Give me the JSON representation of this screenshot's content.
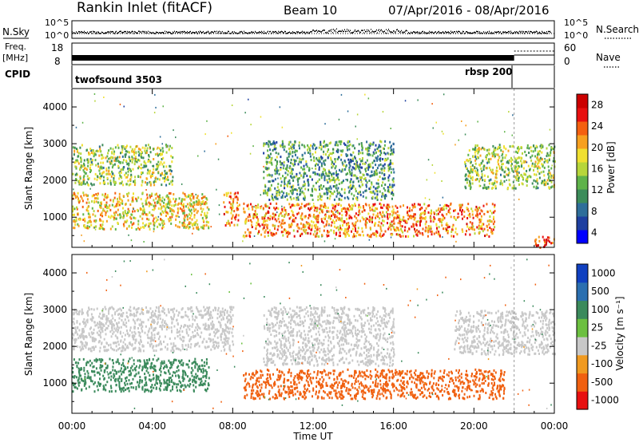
{
  "header": {
    "station": "Rankin Inlet (fitACF)",
    "beam": "Beam 10",
    "dates": "07/Apr/2016 - 08/Apr/2016"
  },
  "strips": {
    "nsky_label": "N.Sky",
    "nsearch_label": "N.Search",
    "noise_ticks_left": [
      "10^5",
      "10^0"
    ],
    "noise_ticks_right": [
      "10^5",
      "10^0"
    ],
    "freq_label_top": "Freq.",
    "freq_label_units": "[MHz]",
    "freq_ticks": [
      "18",
      "8"
    ],
    "nave_label": "Nave",
    "nave_ticks": [
      "60",
      "0"
    ],
    "cpid_label": "CPID",
    "cpid_segments": [
      {
        "name": "twofsound 3503",
        "start_hour": 0,
        "end_hour": 22
      },
      {
        "name": "rbsp 200",
        "start_hour": 22,
        "end_hour": 24
      }
    ]
  },
  "chart_data": [
    {
      "type": "heatmap",
      "panel": "power",
      "ylabel": "Slant Range [km]",
      "ylim": [
        180,
        4500
      ],
      "yticks": [
        "1000",
        "2000",
        "3000",
        "4000"
      ],
      "x_ticks": [
        "00:00",
        "04:00",
        "08:00",
        "12:00",
        "16:00",
        "20:00",
        "00:00"
      ],
      "xlim_hours": [
        0,
        24
      ],
      "colorbar": {
        "label": "Power [dB]",
        "ticks": [
          "4",
          "8",
          "12",
          "16",
          "20",
          "24",
          "28"
        ],
        "colors": [
          "#0000ff",
          "#1e3fa0",
          "#2e6e9a",
          "#3c8c5a",
          "#5fb34a",
          "#b7d63a",
          "#f0e030",
          "#f7a020",
          "#f46010",
          "#e81010",
          "#cc0000"
        ]
      },
      "echo_bands": [
        {
          "t": [
            0.0,
            6.8
          ],
          "range_km": [
            700,
            1700
          ],
          "level_db": 18
        },
        {
          "t": [
            0.0,
            5.0
          ],
          "range_km": [
            1900,
            3000
          ],
          "level_db": 14
        },
        {
          "t": [
            7.5,
            8.3
          ],
          "range_km": [
            800,
            1700
          ],
          "level_db": 22
        },
        {
          "t": [
            8.5,
            21.0
          ],
          "range_km": [
            500,
            1400
          ],
          "level_db": 22
        },
        {
          "t": [
            9.5,
            16.0
          ],
          "range_km": [
            1500,
            3100
          ],
          "level_db": 10
        },
        {
          "t": [
            19.5,
            24.0
          ],
          "range_km": [
            1800,
            3000
          ],
          "level_db": 14
        },
        {
          "t": [
            23.0,
            24.0
          ],
          "range_km": [
            200,
            500
          ],
          "level_db": 26
        }
      ]
    },
    {
      "type": "heatmap",
      "panel": "velocity",
      "ylabel": "Slant Range [km]",
      "ylim": [
        180,
        4500
      ],
      "yticks": [
        "1000",
        "2000",
        "3000",
        "4000"
      ],
      "x_ticks": [
        "00:00",
        "04:00",
        "08:00",
        "12:00",
        "16:00",
        "20:00",
        "00:00"
      ],
      "xlim_hours": [
        0,
        24
      ],
      "xlabel": "Time UT",
      "colorbar": {
        "label": "Velocity [m s⁻¹]",
        "ticks": [
          "1000",
          "500",
          "100",
          "25",
          "-25",
          "-100",
          "-500",
          "-1000"
        ],
        "colors": [
          "#1040c0",
          "#2b6fb0",
          "#3b8a5c",
          "#6cc040",
          "#c8c8c8",
          "#f09a20",
          "#f06010",
          "#e81010"
        ]
      },
      "echo_bands": [
        {
          "t": [
            0.0,
            6.8
          ],
          "range_km": [
            800,
            1700
          ],
          "velocity": 300,
          "ground_scatter": false
        },
        {
          "t": [
            0.0,
            8.0
          ],
          "range_km": [
            1900,
            3100
          ],
          "velocity": 0,
          "ground_scatter": true
        },
        {
          "t": [
            8.5,
            21.5
          ],
          "range_km": [
            600,
            1400
          ],
          "velocity": -300,
          "ground_scatter": false
        },
        {
          "t": [
            9.5,
            16.0
          ],
          "range_km": [
            1500,
            3100
          ],
          "velocity": 0,
          "ground_scatter": true
        },
        {
          "t": [
            19.0,
            24.0
          ],
          "range_km": [
            1800,
            3000
          ],
          "velocity": 0,
          "ground_scatter": true
        }
      ]
    }
  ]
}
